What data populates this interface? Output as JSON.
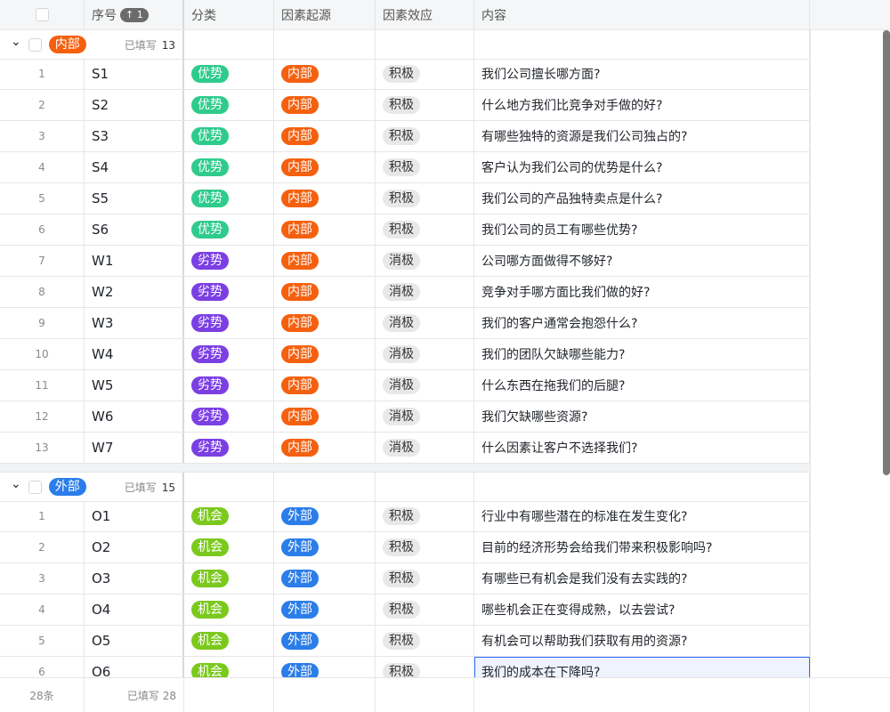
{
  "header": {
    "seq": "序号",
    "sort_badge": "↑ 1",
    "category": "分类",
    "origin": "因素起源",
    "effect": "因素效应",
    "content": "内容"
  },
  "colors": {
    "优势": "#2fcb8c",
    "劣势": "#7b3fe4",
    "机会": "#7bc91d",
    "内部": "#f5600f",
    "外部": "#2b7de9",
    "gray": "#e8e8e8",
    "selection": "#3370ff"
  },
  "groups": [
    {
      "label": "内部",
      "filled_label": "已填写",
      "count": "13",
      "rows": [
        [
          "1",
          "S1",
          "优势",
          "内部",
          "积极",
          "我们公司擅长哪方面?"
        ],
        [
          "2",
          "S2",
          "优势",
          "内部",
          "积极",
          "什么地方我们比竞争对手做的好?"
        ],
        [
          "3",
          "S3",
          "优势",
          "内部",
          "积极",
          "有哪些独特的资源是我们公司独占的?"
        ],
        [
          "4",
          "S4",
          "优势",
          "内部",
          "积极",
          "客户认为我们公司的优势是什么?"
        ],
        [
          "5",
          "S5",
          "优势",
          "内部",
          "积极",
          "我们公司的产品独特卖点是什么?"
        ],
        [
          "6",
          "S6",
          "优势",
          "内部",
          "积极",
          "我们公司的员工有哪些优势?"
        ],
        [
          "7",
          "W1",
          "劣势",
          "内部",
          "消极",
          "公司哪方面做得不够好?"
        ],
        [
          "8",
          "W2",
          "劣势",
          "内部",
          "消极",
          "竞争对手哪方面比我们做的好?"
        ],
        [
          "9",
          "W3",
          "劣势",
          "内部",
          "消极",
          "我们的客户通常会抱怨什么?"
        ],
        [
          "10",
          "W4",
          "劣势",
          "内部",
          "消极",
          "我们的团队欠缺哪些能力?"
        ],
        [
          "11",
          "W5",
          "劣势",
          "内部",
          "消极",
          "什么东西在拖我们的后腿?"
        ],
        [
          "12",
          "W6",
          "劣势",
          "内部",
          "消极",
          "我们欠缺哪些资源?"
        ],
        [
          "13",
          "W7",
          "劣势",
          "内部",
          "消极",
          "什么因素让客户不选择我们?"
        ]
      ]
    },
    {
      "label": "外部",
      "filled_label": "已填写",
      "count": "15",
      "rows": [
        [
          "1",
          "O1",
          "机会",
          "外部",
          "积极",
          "行业中有哪些潜在的标准在发生变化?"
        ],
        [
          "2",
          "O2",
          "机会",
          "外部",
          "积极",
          "目前的经济形势会给我们带来积极影响吗?"
        ],
        [
          "3",
          "O3",
          "机会",
          "外部",
          "积极",
          "有哪些已有机会是我们没有去实践的?"
        ],
        [
          "4",
          "O4",
          "机会",
          "外部",
          "积极",
          "哪些机会正在变得成熟，以去尝试?"
        ],
        [
          "5",
          "O5",
          "机会",
          "外部",
          "积极",
          "有机会可以帮助我们获取有用的资源?"
        ],
        [
          "6",
          "O6",
          "机会",
          "外部",
          "积极",
          "我们的成本在下降吗?"
        ]
      ]
    }
  ],
  "footer": {
    "total": "28条",
    "filled": "已填写 28"
  }
}
